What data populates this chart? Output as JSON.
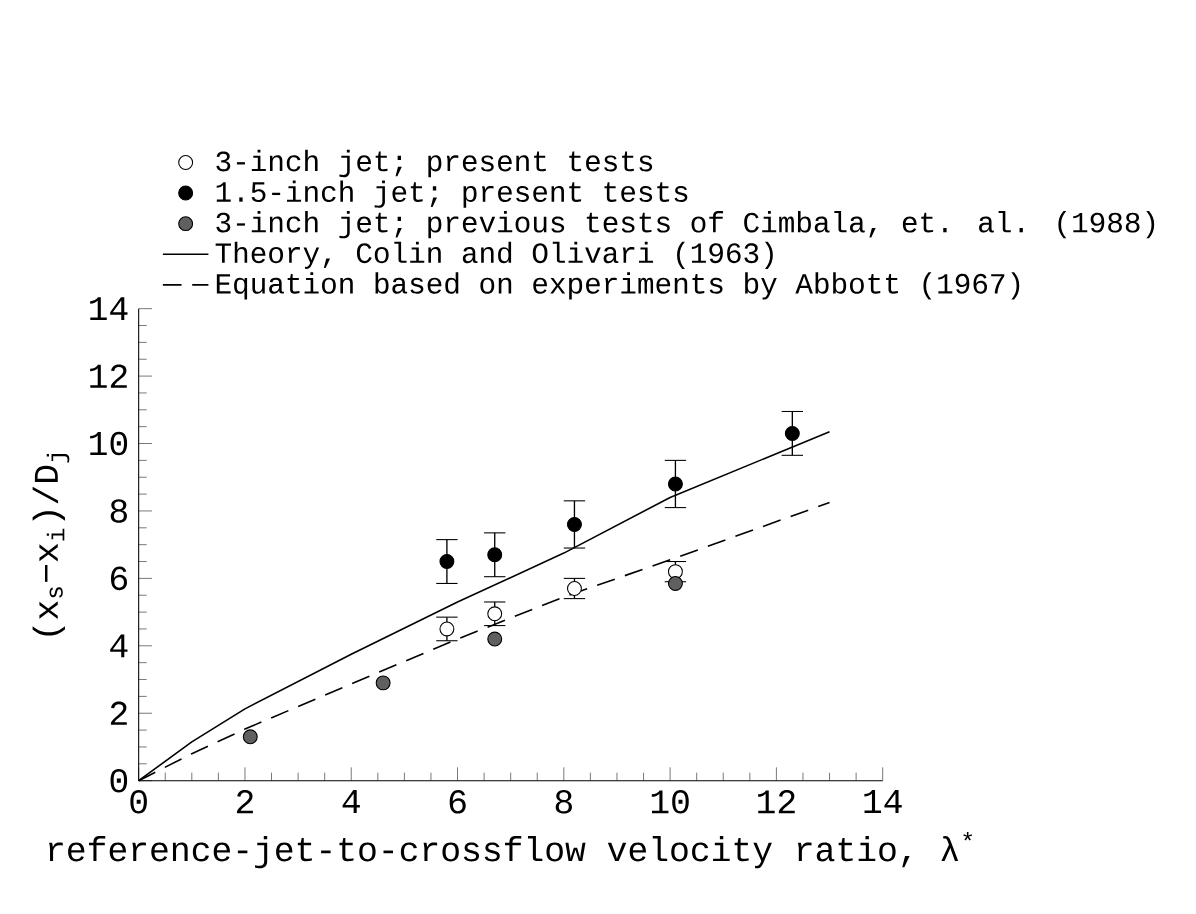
{
  "chart_data": {
    "type": "scatter",
    "xlabel": "reference-jet-to-crossflow velocity ratio, λ$^{*}$",
    "ylabel": "(x$_{s}$−x$_{i}$)/D$_{j}$",
    "xlim": [
      0,
      14
    ],
    "ylim": [
      0,
      14
    ],
    "xticks": [
      0,
      2,
      4,
      6,
      8,
      10,
      12,
      14
    ],
    "yticks": [
      0,
      2,
      4,
      6,
      8,
      10,
      12,
      14
    ],
    "legend": "top",
    "grid": false,
    "marker": "circle",
    "series": [
      {
        "name": "3-inch jet; present tests",
        "color": "#ffffff",
        "x": [
          5.8,
          6.7,
          8.2,
          10.1
        ],
        "values": [
          4.5,
          4.95,
          5.7,
          6.2
        ],
        "errors": [
          0.35,
          0.35,
          0.3,
          0.3
        ]
      },
      {
        "name": "1.5-inch jet; present tests",
        "color": "#000000",
        "x": [
          5.8,
          6.7,
          8.2,
          10.1,
          12.3
        ],
        "values": [
          6.5,
          6.7,
          7.6,
          8.8,
          10.3
        ],
        "errors": [
          0.65,
          0.65,
          0.7,
          0.7,
          0.65
        ]
      },
      {
        "name": "3-inch jet; previous tests of Cimbala, et. al. (1988)",
        "color": "#606060",
        "x": [
          2.1,
          4.6,
          6.7,
          10.1
        ],
        "values": [
          1.3,
          2.9,
          4.2,
          5.85
        ]
      },
      {
        "name": "Theory, Colin and Olivari (1963)",
        "type": "line",
        "marker": "none",
        "line_style": "solid",
        "color": "#000000",
        "x": [
          0,
          1,
          2,
          4,
          6,
          8,
          10,
          13
        ],
        "values": [
          0,
          1.15,
          2.13,
          3.75,
          5.3,
          6.75,
          8.4,
          10.35
        ]
      },
      {
        "name": "Equation based on experiments by Abbott (1967)",
        "type": "line",
        "marker": "none",
        "line_style": "dashed",
        "color": "#000000",
        "x": [
          0,
          1,
          2,
          4,
          6,
          8,
          10,
          13
        ],
        "values": [
          0,
          0.8,
          1.53,
          2.87,
          4.2,
          5.45,
          6.55,
          8.25
        ]
      }
    ]
  }
}
